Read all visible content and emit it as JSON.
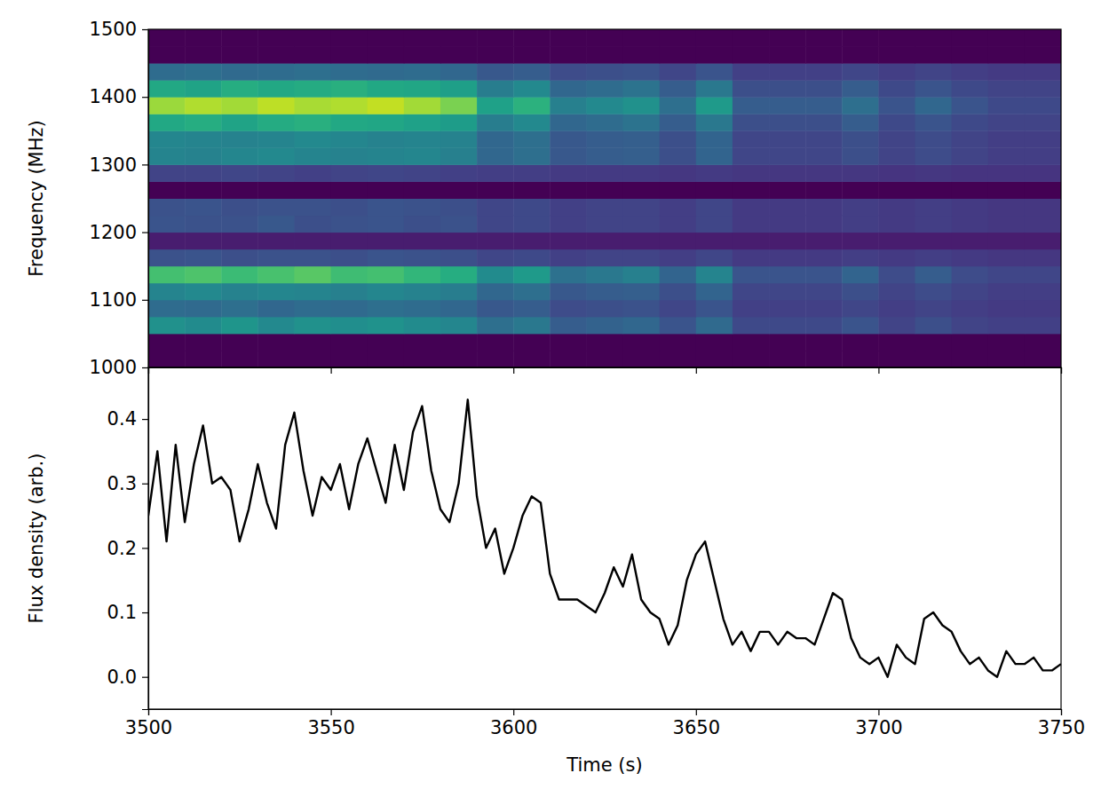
{
  "chart_data": [
    {
      "type": "heatmap",
      "ylabel": "Frequency (MHz)",
      "xlim": [
        3500,
        3750
      ],
      "xticks": [
        3500,
        3550,
        3600,
        3650,
        3700,
        3750
      ],
      "ylim": [
        1000,
        1500
      ],
      "yticks": [
        1000,
        1100,
        1200,
        1300,
        1400,
        1500
      ],
      "tick_labels": "y",
      "zlim": [
        0,
        1
      ],
      "x_edges": [
        3500,
        3510,
        3520,
        3530,
        3540,
        3550,
        3560,
        3570,
        3580,
        3590,
        3600,
        3610,
        3620,
        3630,
        3640,
        3650,
        3660,
        3670,
        3680,
        3690,
        3700,
        3710,
        3720,
        3730,
        3740,
        3750
      ],
      "y_edges": [
        1000,
        1025,
        1050,
        1075,
        1100,
        1125,
        1150,
        1175,
        1200,
        1225,
        1250,
        1275,
        1300,
        1325,
        1350,
        1375,
        1400,
        1425,
        1450,
        1475,
        1500
      ],
      "cells": [
        [
          0,
          0,
          0,
          0,
          0,
          0,
          0,
          0,
          0,
          0,
          0,
          0,
          0,
          0,
          0,
          0,
          0,
          0,
          0,
          0,
          0,
          0,
          0,
          0,
          0
        ],
        [
          0,
          0,
          0,
          0,
          0,
          0,
          0,
          0,
          0,
          0,
          0,
          0,
          0,
          0,
          0,
          0,
          0,
          0,
          0,
          0,
          0,
          0,
          0,
          0,
          0
        ],
        [
          0.5,
          0.48,
          0.52,
          0.47,
          0.5,
          0.49,
          0.51,
          0.48,
          0.46,
          0.36,
          0.4,
          0.29,
          0.31,
          0.33,
          0.26,
          0.34,
          0.22,
          0.22,
          0.22,
          0.26,
          0.2,
          0.24,
          0.2,
          0.19,
          0.19
        ],
        [
          0.35,
          0.34,
          0.36,
          0.33,
          0.35,
          0.34,
          0.36,
          0.35,
          0.33,
          0.27,
          0.29,
          0.23,
          0.24,
          0.25,
          0.21,
          0.26,
          0.19,
          0.19,
          0.19,
          0.21,
          0.18,
          0.2,
          0.18,
          0.17,
          0.17
        ],
        [
          0.45,
          0.47,
          0.44,
          0.46,
          0.45,
          0.43,
          0.46,
          0.44,
          0.42,
          0.33,
          0.36,
          0.27,
          0.29,
          0.3,
          0.24,
          0.32,
          0.21,
          0.21,
          0.21,
          0.24,
          0.2,
          0.23,
          0.2,
          0.18,
          0.18
        ],
        [
          0.7,
          0.72,
          0.68,
          0.71,
          0.74,
          0.69,
          0.7,
          0.66,
          0.62,
          0.48,
          0.54,
          0.37,
          0.4,
          0.43,
          0.32,
          0.45,
          0.26,
          0.26,
          0.26,
          0.32,
          0.23,
          0.29,
          0.23,
          0.21,
          0.21
        ],
        [
          0.25,
          0.26,
          0.24,
          0.25,
          0.25,
          0.24,
          0.26,
          0.25,
          0.24,
          0.21,
          0.22,
          0.19,
          0.2,
          0.2,
          0.18,
          0.21,
          0.17,
          0.17,
          0.17,
          0.18,
          0.17,
          0.18,
          0.17,
          0.16,
          0.16
        ],
        [
          0.08,
          0.08,
          0.08,
          0.08,
          0.08,
          0.08,
          0.08,
          0.08,
          0.08,
          0.08,
          0.08,
          0.08,
          0.08,
          0.08,
          0.08,
          0.08,
          0.08,
          0.08,
          0.08,
          0.08,
          0.08,
          0.08,
          0.08,
          0.08,
          0.08
        ],
        [
          0.26,
          0.25,
          0.25,
          0.27,
          0.24,
          0.25,
          0.26,
          0.24,
          0.25,
          0.21,
          0.22,
          0.19,
          0.2,
          0.2,
          0.18,
          0.21,
          0.17,
          0.17,
          0.17,
          0.18,
          0.17,
          0.18,
          0.17,
          0.16,
          0.16
        ],
        [
          0.25,
          0.26,
          0.24,
          0.25,
          0.25,
          0.24,
          0.26,
          0.25,
          0.24,
          0.21,
          0.22,
          0.19,
          0.2,
          0.2,
          0.18,
          0.21,
          0.17,
          0.17,
          0.17,
          0.18,
          0.17,
          0.18,
          0.17,
          0.16,
          0.16
        ],
        [
          0,
          0,
          0,
          0,
          0,
          0,
          0,
          0,
          0,
          0,
          0,
          0,
          0,
          0,
          0,
          0,
          0,
          0,
          0,
          0,
          0,
          0,
          0,
          0,
          0
        ],
        [
          0.2,
          0.2,
          0.21,
          0.2,
          0.19,
          0.2,
          0.21,
          0.2,
          0.19,
          0.18,
          0.18,
          0.17,
          0.17,
          0.17,
          0.16,
          0.17,
          0.16,
          0.16,
          0.16,
          0.16,
          0.15,
          0.16,
          0.15,
          0.15,
          0.15
        ],
        [
          0.45,
          0.44,
          0.46,
          0.47,
          0.45,
          0.44,
          0.45,
          0.46,
          0.43,
          0.33,
          0.36,
          0.27,
          0.29,
          0.3,
          0.24,
          0.32,
          0.21,
          0.21,
          0.21,
          0.24,
          0.2,
          0.23,
          0.2,
          0.18,
          0.18
        ],
        [
          0.46,
          0.45,
          0.44,
          0.45,
          0.47,
          0.46,
          0.44,
          0.45,
          0.44,
          0.33,
          0.36,
          0.27,
          0.29,
          0.3,
          0.24,
          0.32,
          0.21,
          0.21,
          0.21,
          0.24,
          0.2,
          0.23,
          0.2,
          0.18,
          0.18
        ],
        [
          0.6,
          0.62,
          0.58,
          0.61,
          0.63,
          0.6,
          0.59,
          0.57,
          0.55,
          0.42,
          0.47,
          0.33,
          0.35,
          0.38,
          0.29,
          0.4,
          0.24,
          0.24,
          0.24,
          0.29,
          0.22,
          0.26,
          0.22,
          0.2,
          0.2
        ],
        [
          0.85,
          0.88,
          0.86,
          0.9,
          0.87,
          0.88,
          0.91,
          0.86,
          0.8,
          0.57,
          0.64,
          0.43,
          0.47,
          0.5,
          0.36,
          0.54,
          0.29,
          0.29,
          0.29,
          0.36,
          0.26,
          0.33,
          0.26,
          0.22,
          0.22
        ],
        [
          0.6,
          0.58,
          0.62,
          0.6,
          0.61,
          0.63,
          0.6,
          0.59,
          0.56,
          0.42,
          0.47,
          0.33,
          0.35,
          0.38,
          0.29,
          0.4,
          0.24,
          0.24,
          0.24,
          0.29,
          0.22,
          0.26,
          0.22,
          0.2,
          0.2
        ],
        [
          0.35,
          0.36,
          0.34,
          0.35,
          0.36,
          0.35,
          0.34,
          0.35,
          0.33,
          0.27,
          0.29,
          0.23,
          0.24,
          0.25,
          0.21,
          0.26,
          0.19,
          0.19,
          0.19,
          0.21,
          0.18,
          0.2,
          0.18,
          0.17,
          0.17
        ],
        [
          0,
          0,
          0,
          0,
          0,
          0,
          0,
          0,
          0,
          0,
          0,
          0,
          0,
          0,
          0,
          0,
          0,
          0,
          0,
          0,
          0,
          0,
          0,
          0,
          0
        ],
        [
          0,
          0,
          0,
          0,
          0,
          0,
          0,
          0,
          0,
          0,
          0,
          0,
          0,
          0,
          0,
          0,
          0,
          0,
          0,
          0,
          0,
          0,
          0,
          0,
          0
        ]
      ]
    },
    {
      "type": "line",
      "xlabel": "Time (s)",
      "ylabel": "Flux density (arb.)",
      "color": "#000000",
      "xlim": [
        3500,
        3750
      ],
      "xticks": [
        3500,
        3550,
        3600,
        3650,
        3700,
        3750
      ],
      "ylim": [
        -0.05,
        0.48
      ],
      "yticks": [
        {
          "value": 0,
          "label": "0.0"
        },
        {
          "value": 0.1,
          "label": "0.1"
        },
        {
          "value": 0.2,
          "label": "0.2"
        },
        {
          "value": 0.3,
          "label": "0.3"
        },
        {
          "value": 0.4,
          "label": "0.4"
        }
      ],
      "x": [
        3500,
        3502.5,
        3505,
        3507.5,
        3510,
        3512.5,
        3515,
        3517.5,
        3520,
        3522.5,
        3525,
        3527.5,
        3530,
        3532.5,
        3535,
        3537.5,
        3540,
        3542.5,
        3545,
        3547.5,
        3550,
        3552.5,
        3555,
        3557.5,
        3560,
        3562.5,
        3565,
        3567.5,
        3570,
        3572.5,
        3575,
        3577.5,
        3580,
        3582.5,
        3585,
        3587.5,
        3590,
        3592.5,
        3595,
        3597.5,
        3600,
        3602.5,
        3605,
        3607.5,
        3610,
        3612.5,
        3615,
        3617.5,
        3620,
        3622.5,
        3625,
        3627.5,
        3630,
        3632.5,
        3635,
        3637.5,
        3640,
        3642.5,
        3645,
        3647.5,
        3650,
        3652.5,
        3655,
        3657.5,
        3660,
        3662.5,
        3665,
        3667.5,
        3670,
        3672.5,
        3675,
        3677.5,
        3680,
        3682.5,
        3685,
        3687.5,
        3690,
        3692.5,
        3695,
        3697.5,
        3700,
        3702.5,
        3705,
        3707.5,
        3710,
        3712.5,
        3715,
        3717.5,
        3720,
        3722.5,
        3725,
        3727.5,
        3730,
        3732.5,
        3735,
        3737.5,
        3740,
        3742.5,
        3745,
        3747.5,
        3750
      ],
      "values": [
        0.25,
        0.35,
        0.21,
        0.36,
        0.24,
        0.33,
        0.39,
        0.3,
        0.31,
        0.29,
        0.21,
        0.26,
        0.33,
        0.27,
        0.23,
        0.36,
        0.41,
        0.32,
        0.25,
        0.31,
        0.29,
        0.33,
        0.26,
        0.33,
        0.37,
        0.32,
        0.27,
        0.36,
        0.29,
        0.38,
        0.42,
        0.32,
        0.26,
        0.24,
        0.3,
        0.43,
        0.28,
        0.2,
        0.23,
        0.16,
        0.2,
        0.25,
        0.28,
        0.27,
        0.16,
        0.12,
        0.12,
        0.12,
        0.11,
        0.1,
        0.13,
        0.17,
        0.14,
        0.19,
        0.12,
        0.1,
        0.09,
        0.05,
        0.08,
        0.15,
        0.19,
        0.21,
        0.15,
        0.09,
        0.05,
        0.07,
        0.04,
        0.07,
        0.07,
        0.05,
        0.07,
        0.06,
        0.06,
        0.05,
        0.09,
        0.13,
        0.12,
        0.06,
        0.03,
        0.02,
        0.03,
        0.0,
        0.05,
        0.03,
        0.02,
        0.09,
        0.1,
        0.08,
        0.07,
        0.04,
        0.02,
        0.03,
        0.01,
        0.0,
        0.04,
        0.02,
        0.02,
        0.03,
        0.01,
        0.01,
        0.02
      ]
    }
  ]
}
